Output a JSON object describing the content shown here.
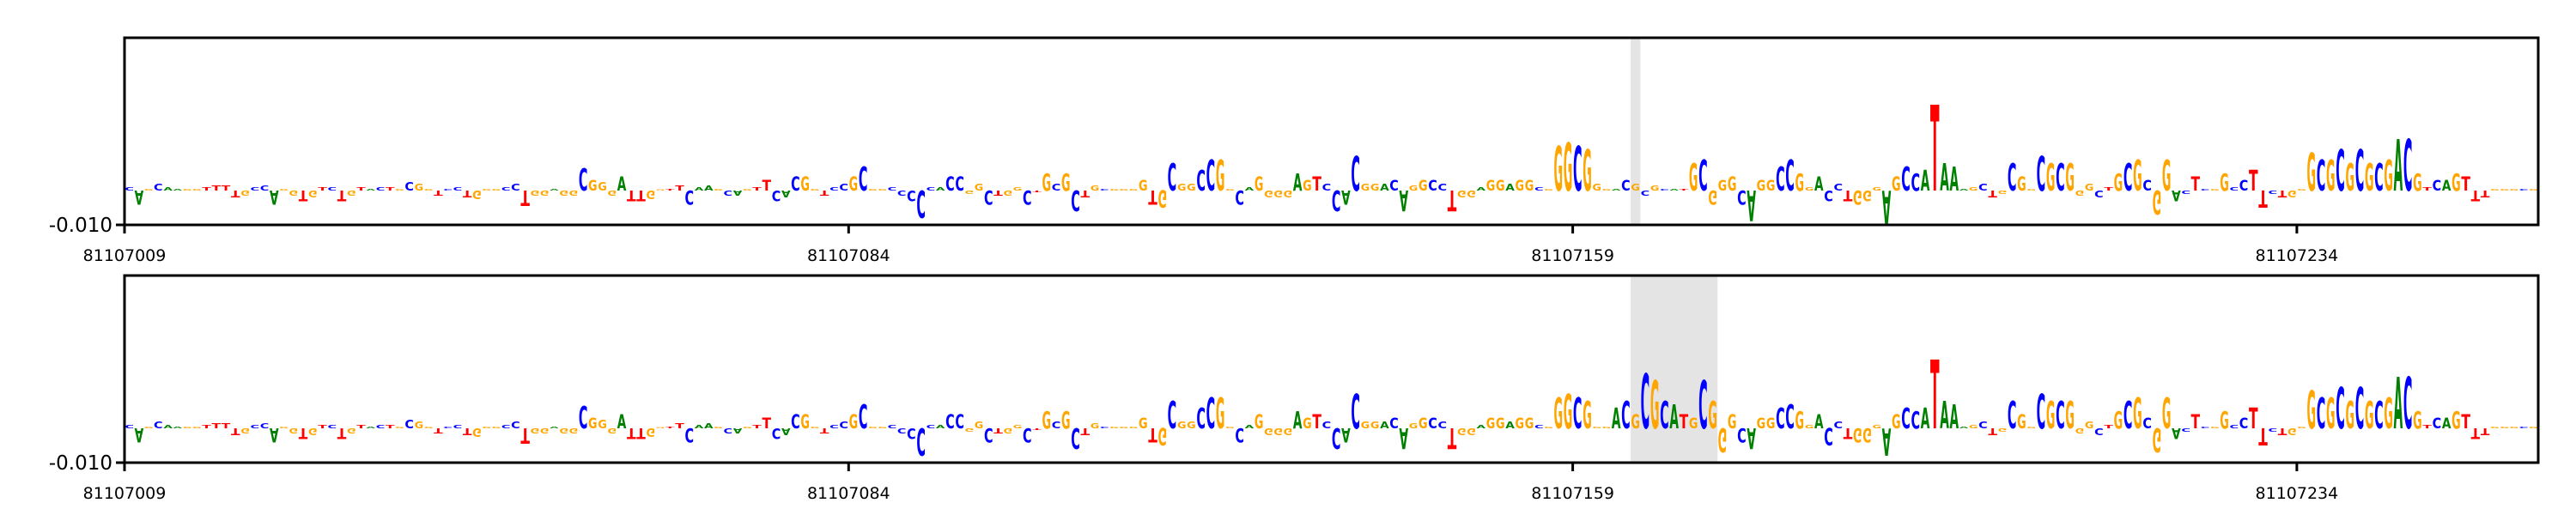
{
  "colors": {
    "A": "#008000",
    "C": "#0000ff",
    "G": "#ffa500",
    "T": "#ff0000",
    "highlight": "#e4e4e4",
    "axis": "#000000"
  },
  "chart_data": [
    {
      "type": "sequence-logo",
      "xlim": [
        81107009,
        81107259
      ],
      "ylim": [
        -0.01,
        0.0445
      ],
      "yticks": [
        {
          "value": -0.01,
          "label": "-0.010"
        }
      ],
      "xticks": [
        {
          "value": 81107009,
          "label": "81107009"
        },
        {
          "value": 81107084,
          "label": "81107084"
        },
        {
          "value": 81107159,
          "label": "81107159"
        },
        {
          "value": 81107234,
          "label": "81107234"
        }
      ],
      "highlight": [
        81107165,
        81107166
      ],
      "start": 81107009,
      "sequence": "CAGCAAGGTTTTGCCAGGTGTCTGTACTGCGGTCCTGGGCCTGGAGGCGGGATTGGTTCAAGCAGTTCACGGTCCGCGGCCCCCACCGGCTGGCTGCGCTGCGGGGTGCGGCCGGCAGGGGAGTCCACGGACAGGCCTGGAGGAGGCGGGCGGGACGCGCATGCGGGCAGGCCGGACCTGGGAGCCATAAAGCTGCGGCGCGGGCTGCGCGGACTCGGCCTTCTGGGCGCGCGCGACGTCAGTTTGGGCG",
      "values": [
        0.001,
        -0.004,
        0.0005,
        0.002,
        0.001,
        0.0005,
        0.0005,
        0.0005,
        0.001,
        0.0015,
        0.0015,
        -0.002,
        -0.0015,
        0.001,
        0.0015,
        -0.004,
        0.0005,
        -0.0015,
        -0.003,
        -0.002,
        0.001,
        0.001,
        -0.003,
        -0.0015,
        0.001,
        0.0005,
        0.001,
        0.001,
        0.0005,
        0.0025,
        0.002,
        0.0005,
        -0.0015,
        0.0005,
        0.001,
        -0.002,
        -0.0025,
        0.0005,
        0.0005,
        0.001,
        0.002,
        -0.0045,
        -0.0015,
        -0.0015,
        0.0005,
        -0.0015,
        -0.0015,
        0.0065,
        0.003,
        0.0025,
        -0.0015,
        0.004,
        -0.003,
        -0.003,
        -0.0025,
        0.0003,
        0.0005,
        0.0015,
        -0.004,
        0.001,
        0.0015,
        0.0005,
        -0.0015,
        -0.0015,
        0.0005,
        0.001,
        0.003,
        -0.003,
        -0.002,
        0.004,
        0.004,
        0.0005,
        -0.0015,
        0.001,
        0.002,
        0.004,
        0.007,
        0.0005,
        0.0005,
        0.001,
        -0.0015,
        -0.003,
        -0.008,
        0.001,
        0.001,
        0.004,
        0.004,
        -0.001,
        0.002,
        -0.004,
        -0.0015,
        -0.0015,
        0.001,
        -0.004,
        -0.0005,
        0.005,
        0.002,
        0.005,
        -0.006,
        -0.002,
        0.0015,
        0.0005,
        0.0005,
        0.0005,
        0.0005,
        0.003,
        -0.004,
        -0.005,
        0.008,
        0.002,
        0.002,
        0.006,
        0.009,
        0.009,
        0.0005,
        -0.004,
        0.001,
        0.004,
        -0.002,
        -0.002,
        -0.002,
        0.005,
        0.003,
        0.004,
        0.002,
        -0.006,
        -0.004,
        0.01,
        0.002,
        0.002,
        0.002,
        0.003,
        -0.006,
        0.0015,
        0.003,
        0.003,
        0.002,
        -0.006,
        -0.002,
        -0.002,
        0.001,
        0.003,
        0.003,
        0.002,
        0.003,
        0.003,
        0.001,
        0.0005,
        0.013,
        0.014,
        0.013,
        0.012,
        0.002,
        0.0005,
        0.0005,
        0.003,
        0.002,
        -0.0015,
        0.0015,
        0.0005,
        0.0005,
        0.0005,
        0.008,
        0.009,
        -0.004,
        0.003,
        0.004,
        -0.004,
        -0.009,
        0.003,
        0.003,
        0.007,
        0.009,
        0.005,
        0.001,
        0.004,
        -0.003,
        0.002,
        -0.003,
        -0.004,
        -0.003,
        0.001,
        -0.01,
        0.004,
        0.007,
        0.005,
        0.006,
        0.025,
        0.008,
        0.007,
        0.0005,
        0.001,
        0.002,
        -0.002,
        -0.001,
        0.008,
        0.004,
        0.0005,
        0.01,
        0.008,
        0.008,
        0.008,
        -0.0015,
        0.002,
        -0.002,
        0.001,
        0.005,
        0.008,
        0.009,
        0.003,
        -0.007,
        0.009,
        -0.003,
        -0.001,
        0.004,
        0.0005,
        0.0005,
        0.005,
        0.001,
        0.003,
        0.006,
        -0.005,
        -0.001,
        -0.002,
        -0.002,
        0.0005,
        0.011,
        0.009,
        0.009,
        0.012,
        0.008,
        0.012,
        0.008,
        0.008,
        0.009,
        0.015,
        0.015,
        0.005,
        0.001,
        0.003,
        0.003,
        0.005,
        0.004,
        -0.003,
        -0.002,
        0.0005,
        0.0005,
        0.0005,
        0.0005,
        0.0005
      ]
    },
    {
      "type": "sequence-logo",
      "xlim": [
        81107009,
        81107259
      ],
      "ylim": [
        -0.01,
        0.0445
      ],
      "yticks": [
        {
          "value": -0.01,
          "label": "-0.010"
        }
      ],
      "xticks": [
        {
          "value": 81107009,
          "label": "81107009"
        },
        {
          "value": 81107084,
          "label": "81107084"
        },
        {
          "value": 81107159,
          "label": "81107159"
        },
        {
          "value": 81107234,
          "label": "81107234"
        }
      ],
      "highlight": [
        81107165,
        81107174
      ],
      "start": 81107009,
      "sequence": "CAGCAAGGTTTTGCCAGGTGTCTGTACTGCGGTCCTGGGCCTGGAGGCGGGATTGGTTCAAGCAGTTCACGGTCCGCGGCCCCCACCGGCTGGCTGCGCTGCGGGGTGCGGCCGGCAGGGGAGTCCACGGACAGGCCTGGAGGAGGCGGGCGGGACGCGCATGCGGGCAGGCCGGACCTGGGAGCCATAAAGCTGCGGCGCGGGCTGCGCGGACTCGGCCTTCTGGGCGCGCGCGACGTCAGTTTGGGCG",
      "values": [
        0.001,
        -0.004,
        0.0005,
        0.002,
        0.001,
        0.0005,
        0.0005,
        0.0005,
        0.001,
        0.0015,
        0.0015,
        -0.002,
        -0.0015,
        0.001,
        0.0015,
        -0.004,
        0.0005,
        -0.0015,
        -0.003,
        -0.002,
        0.001,
        0.001,
        -0.003,
        -0.0015,
        0.001,
        0.0005,
        0.001,
        0.001,
        0.0005,
        0.0025,
        0.002,
        0.0005,
        -0.0015,
        0.0005,
        0.001,
        -0.002,
        -0.0025,
        0.0005,
        0.0005,
        0.001,
        0.002,
        -0.0045,
        -0.0015,
        -0.0015,
        0.0005,
        -0.0015,
        -0.0015,
        0.0065,
        0.003,
        0.0025,
        -0.0015,
        0.004,
        -0.003,
        -0.003,
        -0.0025,
        0.0003,
        0.0005,
        0.0015,
        -0.004,
        0.001,
        0.0015,
        0.0005,
        -0.0015,
        -0.0015,
        0.0005,
        0.001,
        0.003,
        -0.003,
        -0.002,
        0.004,
        0.004,
        0.0005,
        -0.0015,
        0.001,
        0.002,
        0.004,
        0.007,
        0.0005,
        0.0005,
        0.001,
        -0.0015,
        -0.003,
        -0.008,
        0.001,
        0.001,
        0.004,
        0.004,
        -0.001,
        0.002,
        -0.004,
        -0.0015,
        -0.0015,
        0.001,
        -0.004,
        -0.0005,
        0.005,
        0.002,
        0.005,
        -0.006,
        -0.002,
        0.0015,
        0.0005,
        0.0005,
        0.0005,
        0.0005,
        0.003,
        -0.004,
        -0.005,
        0.008,
        0.002,
        0.002,
        0.006,
        0.009,
        0.009,
        0.0005,
        -0.004,
        0.001,
        0.004,
        -0.002,
        -0.002,
        -0.002,
        0.005,
        0.003,
        0.004,
        0.002,
        -0.006,
        -0.004,
        0.01,
        0.002,
        0.002,
        0.002,
        0.003,
        -0.006,
        0.0015,
        0.003,
        0.003,
        0.002,
        -0.006,
        -0.002,
        -0.002,
        0.001,
        0.003,
        0.003,
        0.002,
        0.003,
        0.003,
        0.001,
        0.0005,
        0.009,
        0.01,
        0.009,
        0.008,
        0.0005,
        0.0005,
        0.006,
        0.008,
        0.004,
        0.016,
        0.014,
        0.008,
        0.007,
        0.004,
        0.003,
        0.014,
        0.008,
        -0.007,
        0.004,
        -0.004,
        -0.006,
        0.003,
        0.003,
        0.006,
        0.007,
        0.005,
        0.001,
        0.004,
        -0.005,
        0.002,
        -0.003,
        -0.004,
        -0.004,
        0.001,
        -0.008,
        0.004,
        0.006,
        0.005,
        0.006,
        0.02,
        0.008,
        0.007,
        0.0005,
        0.001,
        0.002,
        -0.002,
        -0.001,
        0.008,
        0.004,
        0.0005,
        0.01,
        0.008,
        0.008,
        0.008,
        -0.0015,
        0.002,
        -0.002,
        0.001,
        0.005,
        0.008,
        0.009,
        0.003,
        -0.007,
        0.009,
        -0.003,
        -0.001,
        0.004,
        0.0005,
        0.0005,
        0.005,
        0.001,
        0.003,
        0.006,
        -0.005,
        -0.001,
        -0.002,
        -0.002,
        0.0005,
        0.011,
        0.009,
        0.009,
        0.012,
        0.008,
        0.012,
        0.008,
        0.008,
        0.009,
        0.015,
        0.015,
        0.005,
        0.001,
        0.003,
        0.003,
        0.005,
        0.004,
        -0.003,
        -0.002,
        0.0005,
        0.0005,
        0.0005,
        0.0005,
        0.0005
      ]
    }
  ]
}
